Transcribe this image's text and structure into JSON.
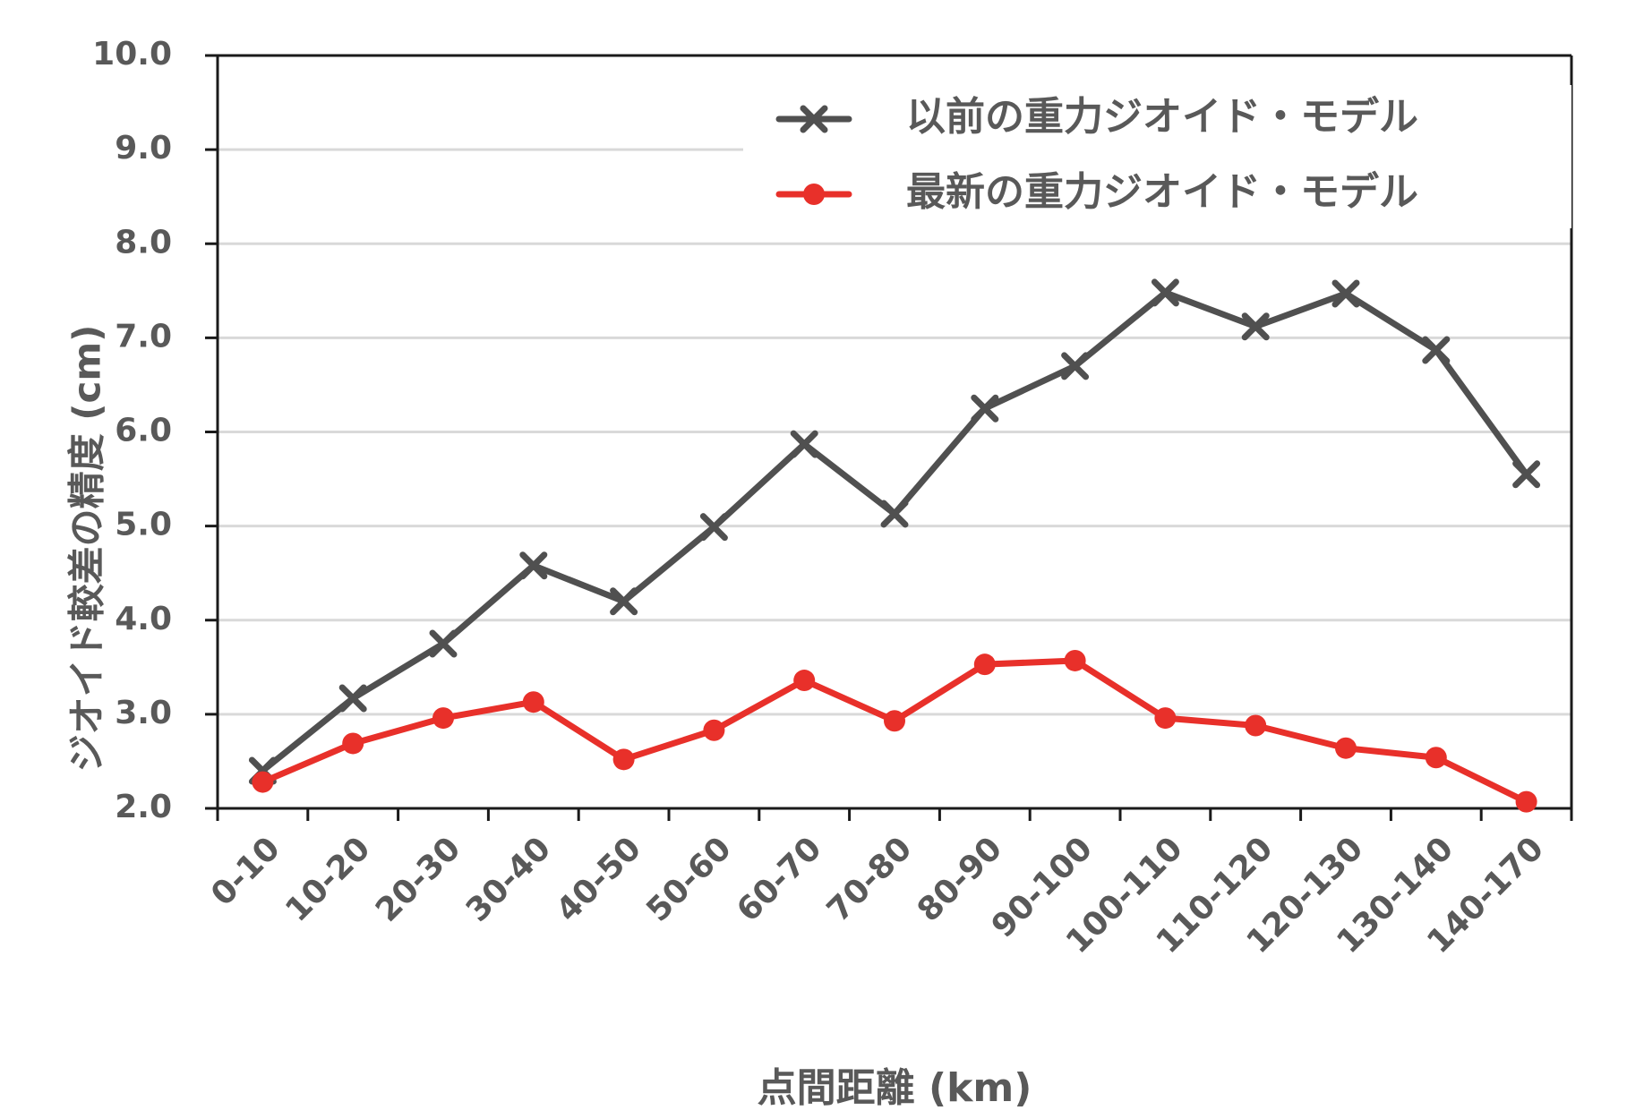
{
  "chart_data": {
    "type": "line",
    "title": "",
    "xlabel": "点間距離 (km)",
    "ylabel": "ジオイド較差の精度 (cm)",
    "ylim": [
      2.0,
      10.0
    ],
    "ytick_step": 1.0,
    "grid": true,
    "legend_position": "top-right",
    "categories": [
      "0-10",
      "10-20",
      "20-30",
      "30-40",
      "40-50",
      "50-60",
      "60-70",
      "70-80",
      "80-90",
      "90-100",
      "100-110",
      "110-120",
      "120-130",
      "130-140",
      "140-170"
    ],
    "series": [
      {
        "name": "以前の重力ジオイド・モデル",
        "color": "#505050",
        "marker": "x",
        "values": [
          2.4,
          3.17,
          3.75,
          4.58,
          4.2,
          4.99,
          5.87,
          5.13,
          6.25,
          6.7,
          7.48,
          7.12,
          7.47,
          6.87,
          5.55
        ]
      },
      {
        "name": "最新の重力ジオイド・モデル",
        "color": "#e8302a",
        "marker": "circle",
        "values": [
          2.28,
          2.69,
          2.96,
          3.13,
          2.52,
          2.83,
          3.36,
          2.93,
          3.53,
          3.57,
          2.96,
          2.88,
          2.64,
          2.54,
          2.07
        ]
      }
    ]
  }
}
